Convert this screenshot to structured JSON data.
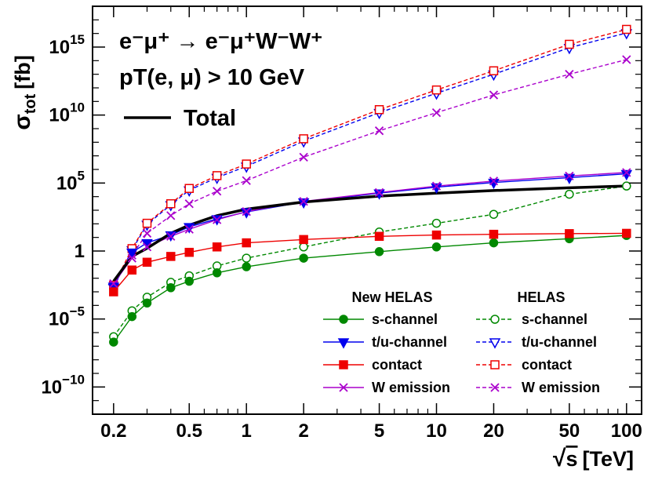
{
  "chart_data": {
    "type": "line",
    "xscale": "log",
    "yscale": "log",
    "xlabel": "√s [TeV]",
    "xlabel_parts": {
      "root": "√",
      "var": "s",
      "unit": "[TeV]"
    },
    "ylabel": "σtot [fb]",
    "ylabel_parts": {
      "sym": "σ",
      "sub": "tot",
      "unit": "[fb]"
    },
    "xlim": [
      0.155,
      120
    ],
    "ylim": [
      1e-12,
      1e+18
    ],
    "xticks": [
      0.2,
      0.5,
      1,
      2,
      5,
      10,
      20,
      50,
      100
    ],
    "xtick_labels": [
      "0.2",
      "0.5",
      "1",
      "2",
      "5",
      "10",
      "20",
      "50",
      "100"
    ],
    "yticks": [
      1e-10,
      1e-05,
      1,
      100000.0,
      10000000000.0,
      1000000000000000.0
    ],
    "ytick_labels": [
      {
        "base": "10",
        "exp": "−10"
      },
      {
        "base": "10",
        "exp": "−5"
      },
      {
        "base": "1",
        "exp": ""
      },
      {
        "base": "10",
        "exp": "5"
      },
      {
        "base": "10",
        "exp": "10"
      },
      {
        "base": "10",
        "exp": "15"
      }
    ],
    "annotations": {
      "process": "e⁻μ⁺ → e⁻μ⁺W⁻W⁺",
      "cut": "pT(e, μ) > 10 GeV"
    },
    "legend_heads": {
      "new": "New HELAS",
      "old": "HELAS"
    },
    "total_label": "Total",
    "x": [
      0.2,
      0.25,
      0.3,
      0.4,
      0.5,
      0.7,
      1,
      2,
      5,
      10,
      20,
      50,
      100
    ],
    "series": [
      {
        "name": "Total",
        "group": "total",
        "color": "#000000",
        "dash": false,
        "marker": "none",
        "values": [
          0.006,
          0.4,
          1.6,
          20,
          80,
          400,
          1200,
          4000,
          11000,
          18000,
          28000,
          45000,
          60000
        ]
      },
      {
        "name": "s-channel",
        "group": "new",
        "color": "#008800",
        "dash": false,
        "marker": "circle",
        "values": [
          2e-07,
          1.5e-05,
          0.00015,
          0.002,
          0.006,
          0.025,
          0.07,
          0.3,
          0.9,
          2,
          4,
          8,
          14
        ]
      },
      {
        "name": "t/u-channel",
        "group": "new",
        "color": "#0000ee",
        "dash": false,
        "marker": "tri",
        "values": [
          0.0025,
          0.8,
          4,
          15,
          60,
          230,
          750,
          4000,
          18000,
          50000,
          110000,
          250000,
          480000
        ]
      },
      {
        "name": "contact",
        "group": "new",
        "color": "#ee0000",
        "dash": false,
        "marker": "square",
        "values": [
          0.001,
          0.04,
          0.15,
          0.4,
          0.8,
          2,
          4,
          7,
          12,
          15,
          17,
          19,
          20
        ]
      },
      {
        "name": "W emission",
        "group": "new",
        "color": "#aa00cc",
        "dash": false,
        "marker": "x",
        "values": [
          0.004,
          0.3,
          2,
          12,
          40,
          200,
          800,
          4500,
          20000,
          60000,
          140000,
          330000,
          600000
        ]
      },
      {
        "name": "s-channel",
        "group": "old",
        "color": "#008800",
        "dash": true,
        "marker": "ocircle",
        "values": [
          5e-07,
          4e-05,
          0.0004,
          0.005,
          0.015,
          0.08,
          0.3,
          2,
          25,
          110,
          500,
          15000,
          60000
        ]
      },
      {
        "name": "t/u-channel",
        "group": "old",
        "color": "#0000ee",
        "dash": true,
        "marker": "otri",
        "values": [
          0.002,
          1.2,
          90,
          2500,
          30000,
          250000,
          1700000.0,
          120000000.0,
          15000000000.0,
          400000000000.0,
          10000000000000.0,
          900000000000000.0,
          1.1e+16
        ]
      },
      {
        "name": "contact",
        "group": "old",
        "color": "#ee0000",
        "dash": true,
        "marker": "osquare",
        "values": [
          0.003,
          1.5,
          110,
          3000,
          40000,
          350000,
          2500000.0,
          180000000.0,
          25000000000.0,
          700000000000.0,
          18000000000000.0,
          1600000000000000.0,
          2e+16
        ]
      },
      {
        "name": "W emission",
        "group": "old",
        "color": "#aa00cc",
        "dash": true,
        "marker": "x",
        "values": [
          0.003,
          0.5,
          20,
          400,
          3000,
          25000,
          150000,
          8000000.0,
          700000000.0,
          15000000000.0,
          300000000000.0,
          10000000000000.0,
          120000000000000.0
        ]
      }
    ]
  }
}
